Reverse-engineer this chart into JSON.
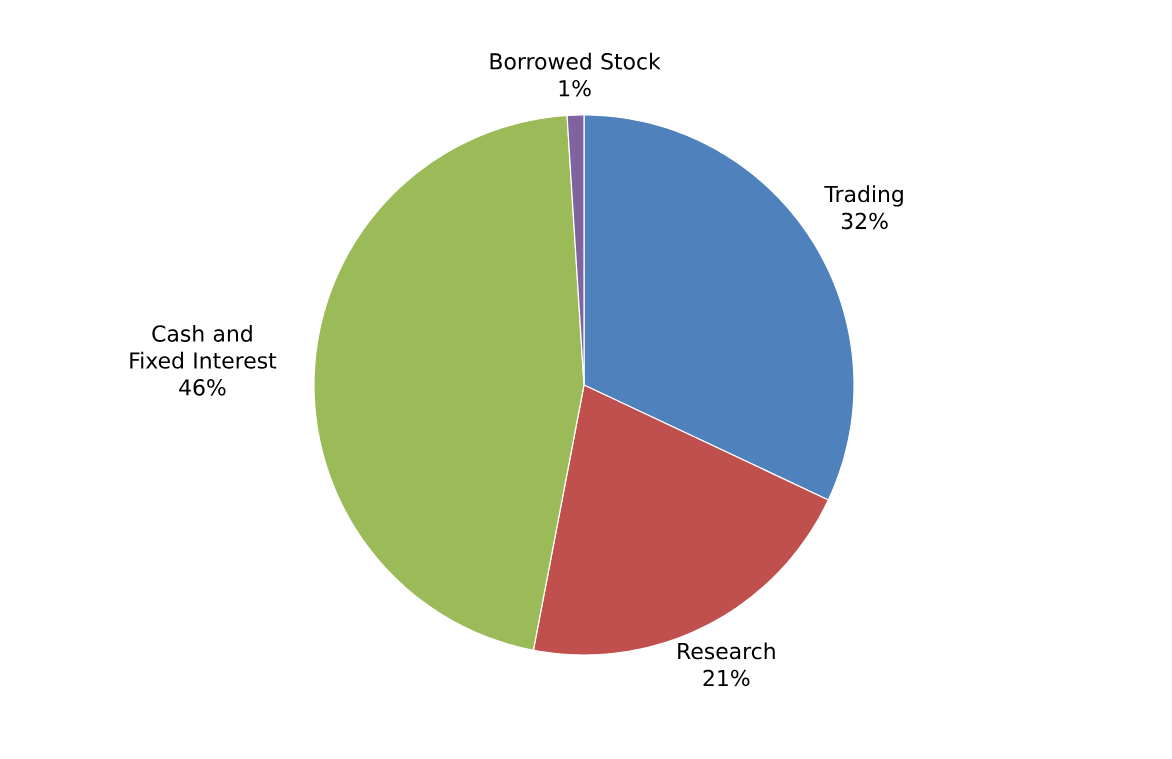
{
  "chart_data": {
    "type": "pie",
    "categories": [
      "Trading",
      "Research",
      "Cash and Fixed Interest",
      "Borrowed Stock"
    ],
    "values": [
      32,
      21,
      46,
      1
    ],
    "value_labels": [
      "32%",
      "21%",
      "46%",
      "1%"
    ],
    "colors": [
      "#4f81bd",
      "#c0504d",
      "#9bbb59",
      "#8064a2"
    ],
    "data_labels": true
  }
}
